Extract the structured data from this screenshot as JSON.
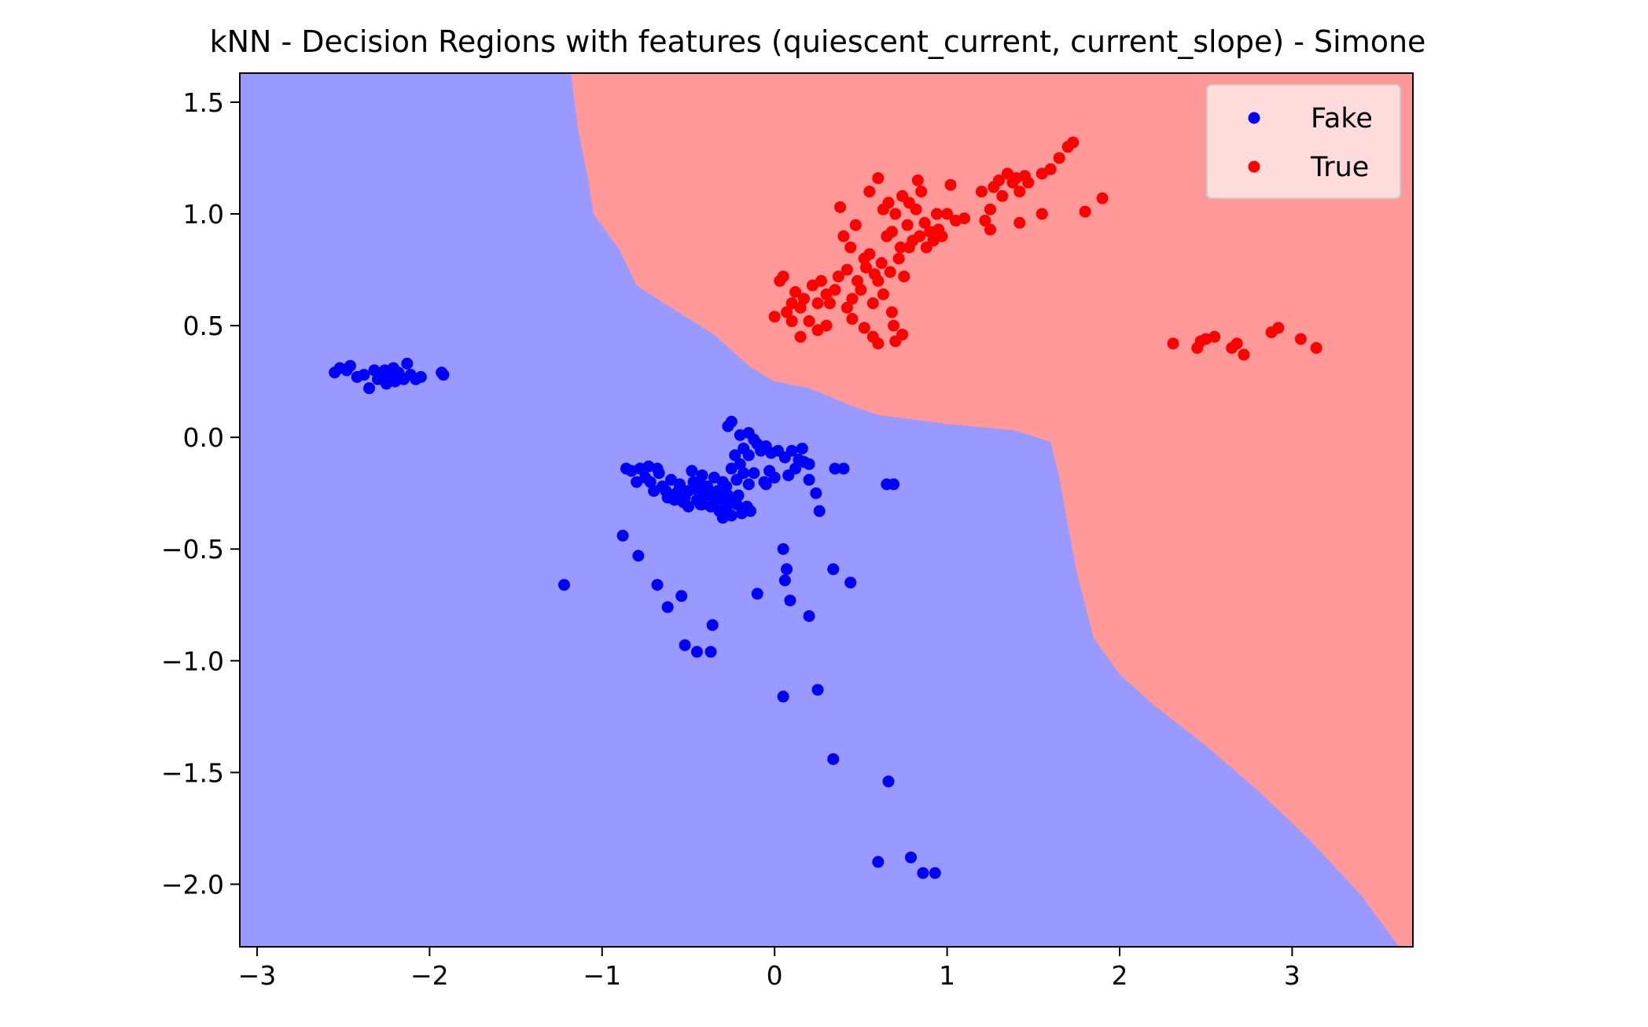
{
  "chart_data": {
    "type": "scatter",
    "title": "kNN - Decision Regions with features (quiescent_current, current_slope) - Simone",
    "xlabel": "",
    "ylabel": "",
    "xlim": [
      -3.1,
      3.7
    ],
    "ylim": [
      -2.28,
      1.63
    ],
    "xticks": [
      -3,
      -2,
      -1,
      0,
      1,
      2,
      3
    ],
    "xtick_labels": [
      "−3",
      "−2",
      "−1",
      "0",
      "1",
      "2",
      "3"
    ],
    "yticks": [
      1.5,
      1.0,
      0.5,
      0.0,
      -0.5,
      -1.0,
      -1.5,
      -2.0
    ],
    "ytick_labels": [
      "1.5",
      "1.0",
      "0.5",
      "0.0",
      "−0.5",
      "−1.0",
      "−1.5",
      "−2.0"
    ],
    "grid": false,
    "legend_position": "top-right",
    "colors": {
      "fake_region": "#9999ff",
      "true_region": "#ff9999",
      "fake_points": "#0000ff",
      "true_points": "#ff0000",
      "legend_bg": "#ffe8e8"
    },
    "decision_boundary": [
      [
        -1.18,
        1.63
      ],
      [
        -1.14,
        1.38
      ],
      [
        -1.08,
        1.15
      ],
      [
        -1.05,
        1.0
      ],
      [
        -0.9,
        0.84
      ],
      [
        -0.8,
        0.68
      ],
      [
        -0.6,
        0.58
      ],
      [
        -0.35,
        0.46
      ],
      [
        -0.15,
        0.32
      ],
      [
        0.0,
        0.25
      ],
      [
        0.2,
        0.22
      ],
      [
        0.45,
        0.14
      ],
      [
        0.6,
        0.1
      ],
      [
        1.0,
        0.06
      ],
      [
        1.4,
        0.03
      ],
      [
        1.6,
        -0.02
      ],
      [
        1.65,
        -0.18
      ],
      [
        1.75,
        -0.6
      ],
      [
        1.85,
        -0.9
      ],
      [
        2.0,
        -1.06
      ],
      [
        2.2,
        -1.2
      ],
      [
        2.5,
        -1.38
      ],
      [
        2.8,
        -1.58
      ],
      [
        3.1,
        -1.8
      ],
      [
        3.4,
        -2.05
      ],
      [
        3.62,
        -2.28
      ]
    ],
    "series": [
      {
        "name": "Fake",
        "color": "#0000ff",
        "points": [
          [
            -2.55,
            0.29
          ],
          [
            -2.52,
            0.31
          ],
          [
            -2.48,
            0.3
          ],
          [
            -2.46,
            0.32
          ],
          [
            -2.42,
            0.27
          ],
          [
            -2.38,
            0.28
          ],
          [
            -2.35,
            0.22
          ],
          [
            -2.32,
            0.3
          ],
          [
            -2.3,
            0.26
          ],
          [
            -2.28,
            0.28
          ],
          [
            -2.26,
            0.3
          ],
          [
            -2.25,
            0.24
          ],
          [
            -2.23,
            0.27
          ],
          [
            -2.21,
            0.31
          ],
          [
            -2.2,
            0.25
          ],
          [
            -2.18,
            0.29
          ],
          [
            -2.17,
            0.27
          ],
          [
            -2.15,
            0.26
          ],
          [
            -2.13,
            0.33
          ],
          [
            -2.11,
            0.28
          ],
          [
            -2.08,
            0.26
          ],
          [
            -2.05,
            0.27
          ],
          [
            -1.92,
            0.28
          ],
          [
            -1.93,
            0.29
          ],
          [
            -0.27,
            0.05
          ],
          [
            -0.25,
            0.07
          ],
          [
            -0.2,
            0.01
          ],
          [
            -0.15,
            0.02
          ],
          [
            -0.12,
            -0.01
          ],
          [
            -0.08,
            -0.06
          ],
          [
            -0.05,
            -0.04
          ],
          [
            -0.02,
            -0.07
          ],
          [
            0.02,
            -0.06
          ],
          [
            0.06,
            -0.09
          ],
          [
            0.1,
            -0.06
          ],
          [
            0.14,
            -0.1
          ],
          [
            0.17,
            -0.11
          ],
          [
            0.16,
            -0.05
          ],
          [
            0.2,
            -0.12
          ],
          [
            -0.1,
            -0.03
          ],
          [
            -0.15,
            -0.08
          ],
          [
            -0.2,
            -0.12
          ],
          [
            -0.18,
            -0.16
          ],
          [
            -0.22,
            -0.19
          ],
          [
            -0.25,
            -0.14
          ],
          [
            -0.28,
            -0.22
          ],
          [
            -0.3,
            -0.2
          ],
          [
            -0.33,
            -0.24
          ],
          [
            -0.35,
            -0.18
          ],
          [
            -0.38,
            -0.26
          ],
          [
            -0.4,
            -0.22
          ],
          [
            -0.42,
            -0.17
          ],
          [
            -0.45,
            -0.28
          ],
          [
            -0.47,
            -0.2
          ],
          [
            -0.5,
            -0.24
          ],
          [
            -0.52,
            -0.27
          ],
          [
            -0.55,
            -0.21
          ],
          [
            -0.57,
            -0.25
          ],
          [
            -0.6,
            -0.19
          ],
          [
            -0.62,
            -0.27
          ],
          [
            -0.65,
            -0.22
          ],
          [
            -0.67,
            -0.16
          ],
          [
            -0.7,
            -0.24
          ],
          [
            -0.72,
            -0.2
          ],
          [
            -0.75,
            -0.18
          ],
          [
            -0.78,
            -0.14
          ],
          [
            -0.8,
            -0.2
          ],
          [
            -0.83,
            -0.15
          ],
          [
            -0.86,
            -0.14
          ],
          [
            -0.73,
            -0.13
          ],
          [
            -0.68,
            -0.14
          ],
          [
            -0.48,
            -0.15
          ],
          [
            -0.43,
            -0.3
          ],
          [
            -0.37,
            -0.31
          ],
          [
            -0.32,
            -0.33
          ],
          [
            -0.28,
            -0.32
          ],
          [
            -0.25,
            -0.35
          ],
          [
            -0.22,
            -0.3
          ],
          [
            -0.19,
            -0.34
          ],
          [
            -0.16,
            -0.31
          ],
          [
            -0.14,
            -0.33
          ],
          [
            -0.3,
            -0.28
          ],
          [
            -0.27,
            -0.26
          ],
          [
            -0.24,
            -0.29
          ],
          [
            -0.36,
            -0.27
          ],
          [
            -0.41,
            -0.25
          ],
          [
            -0.46,
            -0.23
          ],
          [
            -0.53,
            -0.29
          ],
          [
            -0.58,
            -0.28
          ],
          [
            -0.63,
            -0.24
          ],
          [
            -0.44,
            -0.2
          ],
          [
            -0.39,
            -0.22
          ],
          [
            -0.34,
            -0.28
          ],
          [
            -0.21,
            -0.26
          ],
          [
            -0.15,
            -0.21
          ],
          [
            -0.12,
            -0.16
          ],
          [
            -0.05,
            -0.21
          ],
          [
            -0.03,
            -0.15
          ],
          [
            0.08,
            -0.17
          ],
          [
            0.12,
            -0.14
          ],
          [
            0.2,
            -0.19
          ],
          [
            0.35,
            -0.14
          ],
          [
            0.4,
            -0.14
          ],
          [
            0.65,
            -0.21
          ],
          [
            0.69,
            -0.21
          ],
          [
            0.24,
            -0.25
          ],
          [
            0.26,
            -0.33
          ],
          [
            0.0,
            -0.18
          ],
          [
            -0.06,
            -0.2
          ],
          [
            -0.23,
            -0.08
          ],
          [
            -0.18,
            -0.05
          ],
          [
            -0.42,
            -0.3
          ],
          [
            -0.5,
            -0.31
          ],
          [
            -0.55,
            -0.22
          ],
          [
            -0.3,
            -0.36
          ],
          [
            -0.88,
            -0.44
          ],
          [
            -0.79,
            -0.53
          ],
          [
            -0.68,
            -0.66
          ],
          [
            -0.62,
            -0.76
          ],
          [
            -0.54,
            -0.71
          ],
          [
            -1.22,
            -0.66
          ],
          [
            -0.52,
            -0.93
          ],
          [
            -0.45,
            -0.96
          ],
          [
            -0.37,
            -0.96
          ],
          [
            -0.36,
            -0.84
          ],
          [
            -0.1,
            -0.7
          ],
          [
            0.05,
            -0.5
          ],
          [
            0.07,
            -0.59
          ],
          [
            0.06,
            -0.64
          ],
          [
            0.09,
            -0.73
          ],
          [
            0.2,
            -0.8
          ],
          [
            0.34,
            -0.59
          ],
          [
            0.44,
            -0.65
          ],
          [
            0.05,
            -1.16
          ],
          [
            0.25,
            -1.13
          ],
          [
            0.34,
            -1.44
          ],
          [
            0.66,
            -1.54
          ],
          [
            0.6,
            -1.9
          ],
          [
            0.79,
            -1.88
          ],
          [
            0.86,
            -1.95
          ],
          [
            0.93,
            -1.95
          ]
        ]
      },
      {
        "name": "True",
        "color": "#ff0000",
        "points": [
          [
            0.0,
            0.54
          ],
          [
            0.03,
            0.7
          ],
          [
            0.05,
            0.72
          ],
          [
            0.07,
            0.56
          ],
          [
            0.1,
            0.6
          ],
          [
            0.12,
            0.65
          ],
          [
            0.15,
            0.58
          ],
          [
            0.17,
            0.62
          ],
          [
            0.2,
            0.52
          ],
          [
            0.22,
            0.68
          ],
          [
            0.25,
            0.6
          ],
          [
            0.27,
            0.7
          ],
          [
            0.3,
            0.64
          ],
          [
            0.32,
            0.6
          ],
          [
            0.35,
            0.66
          ],
          [
            0.37,
            0.72
          ],
          [
            0.38,
            1.03
          ],
          [
            0.4,
            0.9
          ],
          [
            0.42,
            0.75
          ],
          [
            0.44,
            0.85
          ],
          [
            0.45,
            0.62
          ],
          [
            0.47,
            0.95
          ],
          [
            0.48,
            0.7
          ],
          [
            0.5,
            0.66
          ],
          [
            0.52,
            0.8
          ],
          [
            0.53,
            0.76
          ],
          [
            0.55,
            0.82
          ],
          [
            0.57,
            0.6
          ],
          [
            0.58,
            0.73
          ],
          [
            0.6,
            0.7
          ],
          [
            0.62,
            0.78
          ],
          [
            0.63,
            0.64
          ],
          [
            0.65,
            0.9
          ],
          [
            0.67,
            0.74
          ],
          [
            0.68,
            0.92
          ],
          [
            0.7,
            1.0
          ],
          [
            0.72,
            0.8
          ],
          [
            0.73,
            0.85
          ],
          [
            0.75,
            0.72
          ],
          [
            0.77,
            0.95
          ],
          [
            0.78,
            1.05
          ],
          [
            0.8,
            0.88
          ],
          [
            0.82,
            1.02
          ],
          [
            0.84,
            0.9
          ],
          [
            0.85,
            1.1
          ],
          [
            0.87,
            0.96
          ],
          [
            0.88,
            0.85
          ],
          [
            0.9,
            0.92
          ],
          [
            0.92,
            0.88
          ],
          [
            0.94,
            1.0
          ],
          [
            0.95,
            0.93
          ],
          [
            0.97,
            0.9
          ],
          [
            1.0,
            1.0
          ],
          [
            1.02,
            1.13
          ],
          [
            1.05,
            0.97
          ],
          [
            1.1,
            0.98
          ],
          [
            1.2,
            1.1
          ],
          [
            1.22,
            0.97
          ],
          [
            1.25,
            1.02
          ],
          [
            1.27,
            1.12
          ],
          [
            1.3,
            1.15
          ],
          [
            1.32,
            1.08
          ],
          [
            1.35,
            1.18
          ],
          [
            1.38,
            1.14
          ],
          [
            1.4,
            1.16
          ],
          [
            1.42,
            1.1
          ],
          [
            1.45,
            1.17
          ],
          [
            1.47,
            1.14
          ],
          [
            1.55,
            1.18
          ],
          [
            1.6,
            1.2
          ],
          [
            1.65,
            1.25
          ],
          [
            1.7,
            1.3
          ],
          [
            1.73,
            1.32
          ],
          [
            1.9,
            1.07
          ],
          [
            1.8,
            1.01
          ],
          [
            1.55,
            1.0
          ],
          [
            1.42,
            0.96
          ],
          [
            1.25,
            0.93
          ],
          [
            0.66,
            1.05
          ],
          [
            0.74,
            1.08
          ],
          [
            0.55,
            1.1
          ],
          [
            0.6,
            1.16
          ],
          [
            0.63,
            1.02
          ],
          [
            0.83,
            1.15
          ],
          [
            0.78,
            0.85
          ],
          [
            0.68,
            0.56
          ],
          [
            0.6,
            0.42
          ],
          [
            0.57,
            0.45
          ],
          [
            0.7,
            0.43
          ],
          [
            0.74,
            0.46
          ],
          [
            0.69,
            0.5
          ],
          [
            0.52,
            0.49
          ],
          [
            0.45,
            0.53
          ],
          [
            0.42,
            0.58
          ],
          [
            0.3,
            0.5
          ],
          [
            0.25,
            0.48
          ],
          [
            0.1,
            0.52
          ],
          [
            0.15,
            0.45
          ],
          [
            2.31,
            0.42
          ],
          [
            2.45,
            0.4
          ],
          [
            2.5,
            0.44
          ],
          [
            2.55,
            0.45
          ],
          [
            2.65,
            0.4
          ],
          [
            2.68,
            0.42
          ],
          [
            2.72,
            0.37
          ],
          [
            2.88,
            0.47
          ],
          [
            2.92,
            0.49
          ],
          [
            3.05,
            0.44
          ],
          [
            3.14,
            0.4
          ],
          [
            2.47,
            0.43
          ]
        ]
      }
    ]
  }
}
